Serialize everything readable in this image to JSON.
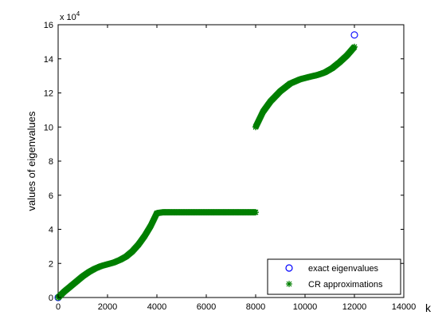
{
  "chart_data": {
    "type": "scatter",
    "xlabel": "k",
    "ylabel": "values of eigenvalues",
    "y_multiplier": "x 10",
    "y_exponent": "4",
    "xlim": [
      0,
      14000
    ],
    "ylim": [
      0,
      160000
    ],
    "xticks": [
      0,
      2000,
      4000,
      6000,
      8000,
      10000,
      12000,
      14000
    ],
    "yticks": [
      0,
      2,
      4,
      6,
      8,
      10,
      12,
      14,
      16
    ],
    "grid": false,
    "legend": "bottom-right",
    "series": [
      {
        "name": "exact eigenvalues",
        "marker": "circle",
        "color": "#0000ff",
        "x": [
          0,
          12000
        ],
        "y": [
          0,
          154000
        ]
      },
      {
        "name": "CR approximations",
        "marker": "asterisk",
        "color": "#007f00",
        "x": [
          0,
          250,
          500,
          750,
          1000,
          1250,
          1500,
          1750,
          2000,
          2250,
          2500,
          2750,
          3000,
          3250,
          3500,
          3750,
          4000,
          4250,
          4500,
          5000,
          5500,
          6000,
          6500,
          7000,
          7500,
          8000,
          8000,
          8100,
          8300,
          8600,
          9000,
          9400,
          9800,
          10200,
          10500,
          10800,
          11100,
          11400,
          11700,
          12000
        ],
        "y": [
          0,
          3500,
          6500,
          9500,
          12500,
          15000,
          17000,
          18500,
          19500,
          20500,
          22000,
          24000,
          27000,
          31000,
          36000,
          42000,
          49500,
          50000,
          50000,
          50000,
          50000,
          50000,
          50000,
          50000,
          50000,
          50000,
          100000,
          103000,
          109000,
          115000,
          121000,
          125500,
          128000,
          129500,
          130500,
          132000,
          134500,
          138000,
          142000,
          147000
        ]
      }
    ]
  }
}
